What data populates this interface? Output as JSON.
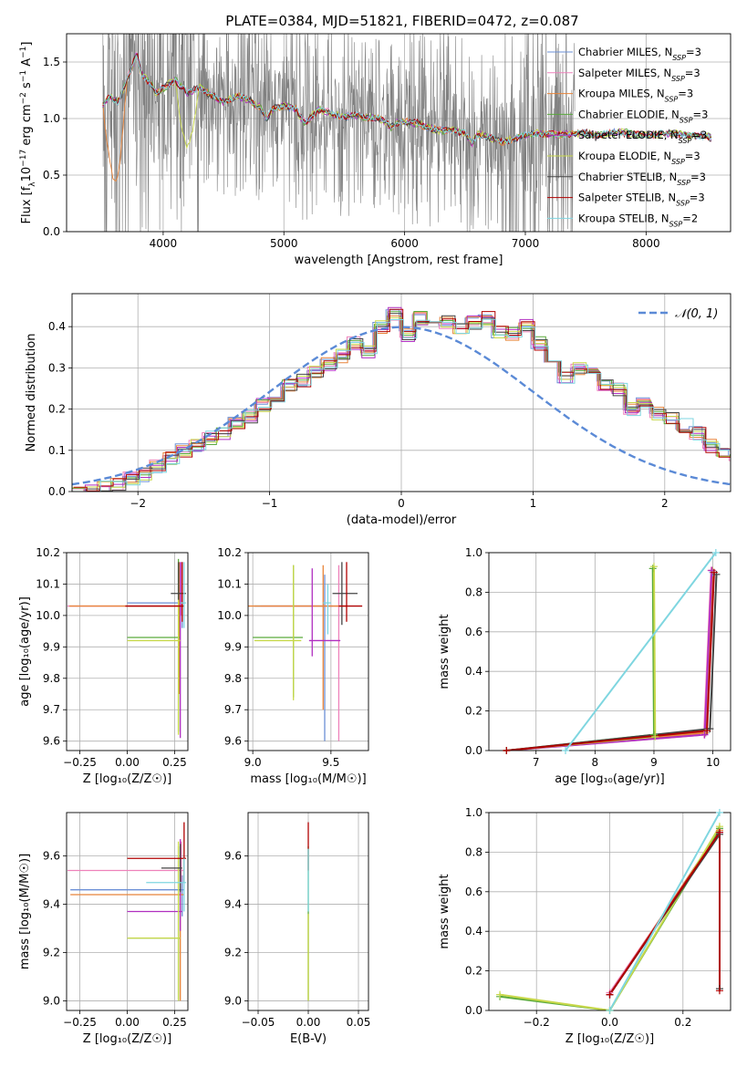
{
  "figure": {
    "title": "PLATE=0384, MJD=51821, FIBERID=0472, z=0.087"
  },
  "models": [
    {
      "name": "Chabrier MILES",
      "nssp": "3",
      "color": "#6b8fd6"
    },
    {
      "name": "Salpeter MILES",
      "nssp": "3",
      "color": "#ee82bb"
    },
    {
      "name": "Kroupa MILES",
      "nssp": "3",
      "color": "#e8843a"
    },
    {
      "name": "Chabrier ELODIE",
      "nssp": "3",
      "color": "#5aaa3c"
    },
    {
      "name": "Salpeter ELODIE",
      "nssp": "3",
      "color": "#b02fc0"
    },
    {
      "name": "Kroupa ELODIE",
      "nssp": "3",
      "color": "#c8d84a"
    },
    {
      "name": "Chabrier STELIB",
      "nssp": "3",
      "color": "#444444"
    },
    {
      "name": "Salpeter STELIB",
      "nssp": "3",
      "color": "#b00000"
    },
    {
      "name": "Kroupa STELIB",
      "nssp": "2",
      "color": "#7fd6e0"
    }
  ],
  "chart_data": [
    {
      "id": "spectrum",
      "type": "line",
      "xlabel": "wavelength [Angstrom, rest frame]",
      "ylabel_parts": [
        "Flux [f",
        "λ",
        "10",
        "−17",
        " erg cm",
        "−2",
        " s",
        "−1",
        " A",
        "−1",
        "]"
      ],
      "xlim": [
        3200,
        8700
      ],
      "ylim": [
        0,
        1.75
      ],
      "xticks": [
        4000,
        5000,
        6000,
        7000,
        8000
      ],
      "yticks": [
        0.0,
        0.5,
        1.0,
        1.5
      ],
      "ytick_labels": [
        "0.0",
        "0.5",
        "1.0",
        "1.5"
      ],
      "data_color": "#808080",
      "data_range": [
        3500,
        7410
      ],
      "model_range": [
        3500,
        8550
      ],
      "continuum": {
        "x": [
          3500,
          3560,
          3620,
          3680,
          3740,
          3780,
          3820,
          3860,
          3900,
          3950,
          4000,
          4100,
          4200,
          4300,
          4400,
          4500,
          4600,
          4700,
          4800,
          4860,
          4900,
          4950,
          5000,
          5100,
          5180,
          5250,
          5300,
          5400,
          5500,
          5600,
          5700,
          5800,
          5890,
          5950,
          6000,
          6100,
          6200,
          6300,
          6400,
          6500,
          6563,
          6600,
          6700,
          6800,
          6900,
          7000,
          7100,
          7200,
          7300,
          7400,
          7500,
          7600,
          7700,
          7800,
          7900,
          8000,
          8100,
          8200,
          8300,
          8400,
          8500,
          8550
        ],
        "y": [
          1.12,
          1.2,
          1.14,
          1.28,
          1.45,
          1.58,
          1.4,
          1.35,
          1.3,
          1.22,
          1.27,
          1.34,
          1.22,
          1.28,
          1.2,
          1.14,
          1.2,
          1.17,
          1.1,
          0.99,
          1.08,
          1.1,
          1.12,
          1.08,
          0.95,
          1.05,
          1.08,
          1.04,
          1.02,
          1.03,
          1.01,
          1.0,
          0.92,
          0.97,
          0.97,
          0.96,
          0.92,
          0.89,
          0.9,
          0.87,
          0.78,
          0.86,
          0.84,
          0.79,
          0.82,
          0.85,
          0.87,
          0.86,
          0.86,
          0.87,
          0.87,
          0.85,
          0.87,
          0.88,
          0.86,
          0.85,
          0.86,
          0.87,
          0.86,
          0.84,
          0.85,
          0.82
        ]
      }
    },
    {
      "id": "residuals",
      "type": "histogram",
      "xlabel": "(data-model)/error",
      "ylabel": "Normed distribution",
      "xlim": [
        -2.5,
        2.5
      ],
      "ylim": [
        0,
        0.48
      ],
      "xticks": [
        -2,
        -1,
        0,
        1,
        2
      ],
      "xtick_labels": [
        "−2",
        "−1",
        "0",
        "1",
        "2"
      ],
      "yticks": [
        0.0,
        0.1,
        0.2,
        0.3,
        0.4
      ],
      "ytick_labels": [
        "0.0",
        "0.1",
        "0.2",
        "0.3",
        "0.4"
      ],
      "bin_edges_start": -2.5,
      "bin_width": 0.1,
      "base_hist": [
        0.0,
        0.0,
        0.01,
        0.02,
        0.03,
        0.04,
        0.06,
        0.08,
        0.1,
        0.11,
        0.13,
        0.14,
        0.17,
        0.18,
        0.21,
        0.23,
        0.26,
        0.27,
        0.29,
        0.31,
        0.33,
        0.36,
        0.34,
        0.4,
        0.43,
        0.38,
        0.42,
        0.4,
        0.41,
        0.4,
        0.41,
        0.42,
        0.39,
        0.38,
        0.4,
        0.36,
        0.3,
        0.28,
        0.3,
        0.29,
        0.26,
        0.25,
        0.2,
        0.21,
        0.19,
        0.18,
        0.16,
        0.14,
        0.11,
        0.09,
        0.09,
        0.08,
        0.09,
        0.06,
        0.07,
        0.05,
        0.05,
        0.04,
        0.04,
        0.03,
        0.03,
        0.02
      ],
      "legend": "𝒩(0, 1)",
      "gauss_color": "#5b8ad6"
    },
    {
      "id": "age_vs_Z",
      "type": "errorbar",
      "xlabel": "Z [log₁₀(Z/Z☉)]",
      "ylabel": "age  [log₁₀(age/yr)]",
      "xlim": [
        -0.32,
        0.32
      ],
      "ylim": [
        9.57,
        10.2
      ],
      "xticks": [
        -0.25,
        0.0,
        0.25
      ],
      "xtick_labels": [
        "−0.25",
        "0.00",
        "0.25"
      ],
      "yticks": [
        9.6,
        9.7,
        9.8,
        9.9,
        10.0,
        10.1,
        10.2
      ],
      "ytick_labels": [
        "9.6",
        "9.7",
        "9.8",
        "9.9",
        "10.0",
        "10.1",
        "10.2"
      ],
      "points": [
        {
          "model": 0,
          "x": 0.29,
          "y": 10.04,
          "xerr": [
            0.29,
            0.01
          ],
          "yerr": [
            0.08,
            0.13
          ]
        },
        {
          "model": 1,
          "x": 0.285,
          "y": 10.03,
          "xerr": [
            0.6,
            0.01
          ],
          "yerr": [
            0.03,
            0.14
          ]
        },
        {
          "model": 2,
          "x": 0.275,
          "y": 10.03,
          "xerr": [
            0.58,
            0.02
          ],
          "yerr": [
            0.28,
            0.14
          ]
        },
        {
          "model": 3,
          "x": 0.27,
          "y": 9.93,
          "xerr": [
            0.27,
            0.01
          ],
          "yerr": [
            0.3,
            0.25
          ]
        },
        {
          "model": 4,
          "x": 0.28,
          "y": 10.03,
          "xerr": [
            0.01,
            0.01
          ],
          "yerr": [
            0.42,
            0.14
          ]
        },
        {
          "model": 5,
          "x": 0.27,
          "y": 9.92,
          "xerr": [
            0.27,
            0.01
          ],
          "yerr": [
            0.3,
            0.25
          ]
        },
        {
          "model": 6,
          "x": 0.27,
          "y": 10.07,
          "xerr": [
            0.04,
            0.04
          ],
          "yerr": [
            0.02,
            0.1
          ]
        },
        {
          "model": 7,
          "x": 0.29,
          "y": 10.03,
          "xerr": [
            0.3,
            0.01
          ],
          "yerr": [
            0.05,
            0.14
          ]
        },
        {
          "model": 8,
          "x": 0.3,
          "y": 10.04,
          "xerr": [
            0.02,
            0.01
          ],
          "yerr": [
            0.08,
            0.13
          ]
        }
      ]
    },
    {
      "id": "age_vs_mass",
      "type": "errorbar",
      "xlabel": "mass [log₁₀(M/M☉)]",
      "ylabel": "",
      "xlim": [
        8.97,
        9.74
      ],
      "ylim": [
        9.57,
        10.2
      ],
      "xticks": [
        9.0,
        9.5
      ],
      "xtick_labels": [
        "9.0",
        "9.5"
      ],
      "yticks": [
        9.6,
        9.7,
        9.8,
        9.9,
        10.0,
        10.1,
        10.2
      ],
      "ytick_labels": [
        "9.6",
        "9.7",
        "9.8",
        "9.9",
        "10.0",
        "10.1",
        "10.2"
      ],
      "points": [
        {
          "model": 0,
          "x": 9.46,
          "y": 10.03,
          "xerr": [
            0.45,
            0.05
          ],
          "yerr": [
            0.43,
            0.1
          ]
        },
        {
          "model": 1,
          "x": 9.55,
          "y": 10.03,
          "xerr": [
            0.5,
            0.02
          ],
          "yerr": [
            0.43,
            0.13
          ]
        },
        {
          "model": 2,
          "x": 9.45,
          "y": 10.03,
          "xerr": [
            0.5,
            0.15
          ],
          "yerr": [
            0.33,
            0.13
          ]
        },
        {
          "model": 3,
          "x": 9.26,
          "y": 9.93,
          "xerr": [
            0.26,
            0.06
          ],
          "yerr": [
            0.19,
            0.23
          ]
        },
        {
          "model": 4,
          "x": 9.38,
          "y": 9.92,
          "xerr": [
            0.02,
            0.18
          ],
          "yerr": [
            0.05,
            0.23
          ]
        },
        {
          "model": 5,
          "x": 9.26,
          "y": 9.92,
          "xerr": [
            0.25,
            0.05
          ],
          "yerr": [
            0.19,
            0.24
          ]
        },
        {
          "model": 6,
          "x": 9.57,
          "y": 10.07,
          "xerr": [
            0.06,
            0.1
          ],
          "yerr": [
            0.1,
            0.1
          ]
        },
        {
          "model": 7,
          "x": 9.6,
          "y": 10.03,
          "xerr": [
            0.05,
            0.1
          ],
          "yerr": [
            0.05,
            0.14
          ]
        },
        {
          "model": 8,
          "x": 9.48,
          "y": 10.04,
          "xerr": [
            0.03,
            0.02
          ],
          "yerr": [
            0.1,
            0.06
          ]
        }
      ]
    },
    {
      "id": "massweight_vs_age",
      "type": "line",
      "xlabel": "age  [log₁₀(age/yr)]",
      "ylabel": "mass weight",
      "xlim": [
        6.2,
        10.3
      ],
      "ylim": [
        0,
        1.0
      ],
      "xticks": [
        7,
        8,
        9,
        10
      ],
      "xtick_labels": [
        "7",
        "8",
        "9",
        "10"
      ],
      "yticks": [
        0.0,
        0.2,
        0.4,
        0.6,
        0.8,
        1.0
      ],
      "ytick_labels": [
        "0.0",
        "0.2",
        "0.4",
        "0.6",
        "0.8",
        "1.0"
      ],
      "series": [
        {
          "model": 0,
          "x": [
            6.5,
            9.88,
            10.0
          ],
          "y": [
            0.0,
            0.09,
            0.9
          ]
        },
        {
          "model": 1,
          "x": [
            6.5,
            9.85,
            9.97
          ],
          "y": [
            0.0,
            0.08,
            0.91
          ]
        },
        {
          "model": 2,
          "x": [
            6.5,
            9.87,
            9.99
          ],
          "y": [
            0.0,
            0.09,
            0.91
          ]
        },
        {
          "model": 3,
          "x": [
            6.5,
            9.0,
            8.98
          ],
          "y": [
            0.0,
            0.08,
            0.92
          ]
        },
        {
          "model": 4,
          "x": [
            6.5,
            9.86,
            9.98
          ],
          "y": [
            0.0,
            0.08,
            0.91
          ]
        },
        {
          "model": 5,
          "x": [
            6.5,
            9.02,
            9.0
          ],
          "y": [
            0.0,
            0.07,
            0.93
          ]
        },
        {
          "model": 6,
          "x": [
            6.5,
            9.95,
            10.06
          ],
          "y": [
            0.0,
            0.11,
            0.89
          ]
        },
        {
          "model": 7,
          "x": [
            6.5,
            9.9,
            10.02
          ],
          "y": [
            0.0,
            0.1,
            0.9
          ]
        },
        {
          "model": 8,
          "x": [
            7.5,
            10.05
          ],
          "y": [
            0.0,
            1.0
          ]
        }
      ]
    },
    {
      "id": "mass_vs_Z",
      "type": "errorbar",
      "xlabel": "Z [log₁₀(Z/Z☉)]",
      "ylabel": "mass [log₁₀(M/M☉)]",
      "xlim": [
        -0.32,
        0.32
      ],
      "ylim": [
        8.96,
        9.78
      ],
      "xticks": [
        -0.25,
        0.0,
        0.25
      ],
      "xtick_labels": [
        "−0.25",
        "0.00",
        "0.25"
      ],
      "yticks": [
        9.0,
        9.2,
        9.4,
        9.6
      ],
      "ytick_labels": [
        "9.0",
        "9.2",
        "9.4",
        "9.6"
      ],
      "points": [
        {
          "model": 0,
          "x": 0.29,
          "y": 9.46,
          "xerr": [
            0.59,
            0.01
          ],
          "yerr": [
            0.11,
            0.06
          ]
        },
        {
          "model": 1,
          "x": 0.285,
          "y": 9.54,
          "xerr": [
            0.6,
            0.01
          ],
          "yerr": [
            0.05,
            0.12
          ]
        },
        {
          "model": 2,
          "x": 0.28,
          "y": 9.44,
          "xerr": [
            0.58,
            0.02
          ],
          "yerr": [
            0.44,
            0.12
          ]
        },
        {
          "model": 3,
          "x": 0.27,
          "y": 9.26,
          "xerr": [
            0.27,
            0.01
          ],
          "yerr": [
            0.26,
            0.38
          ]
        },
        {
          "model": 4,
          "x": 0.28,
          "y": 9.37,
          "xerr": [
            0.28,
            0.01
          ],
          "yerr": [
            0.08,
            0.3
          ]
        },
        {
          "model": 5,
          "x": 0.27,
          "y": 9.26,
          "xerr": [
            0.27,
            0.01
          ],
          "yerr": [
            0.26,
            0.4
          ]
        },
        {
          "model": 6,
          "x": 0.28,
          "y": 9.55,
          "xerr": [
            0.1,
            0.01
          ],
          "yerr": [
            0.1,
            0.1
          ]
        },
        {
          "model": 7,
          "x": 0.3,
          "y": 9.59,
          "xerr": [
            0.3,
            0.01
          ],
          "yerr": [
            0.1,
            0.15
          ]
        },
        {
          "model": 8,
          "x": 0.3,
          "y": 9.49,
          "xerr": [
            0.2,
            0.01
          ],
          "yerr": [
            0.12,
            0.1
          ]
        }
      ]
    },
    {
      "id": "mass_vs_ebv",
      "type": "errorbar",
      "xlabel": "E(B-V)",
      "ylabel": "",
      "xlim": [
        -0.06,
        0.06
      ],
      "ylim": [
        8.96,
        9.78
      ],
      "xticks": [
        -0.05,
        0.0,
        0.05
      ],
      "xtick_labels": [
        "−0.05",
        "0.00",
        "0.05"
      ],
      "yticks": [
        9.0,
        9.2,
        9.4,
        9.6
      ],
      "ytick_labels": [
        "9.0",
        "9.2",
        "9.4",
        "9.6"
      ],
      "points": [
        {
          "model": 3,
          "x": 0.0,
          "y": 9.26,
          "xerr": [
            0,
            0
          ],
          "yerr": [
            0.26,
            0.38
          ]
        },
        {
          "model": 7,
          "x": 0.0,
          "y": 9.59,
          "xerr": [
            0,
            0
          ],
          "yerr": [
            0.05,
            0.15
          ]
        },
        {
          "model": 8,
          "x": 0.0,
          "y": 9.49,
          "xerr": [
            0,
            0
          ],
          "yerr": [
            0.12,
            0.14
          ]
        },
        {
          "model": 5,
          "x": 0.0,
          "y": 9.26,
          "xerr": [
            0,
            0
          ],
          "yerr": [
            0.26,
            0.1
          ]
        }
      ]
    },
    {
      "id": "massweight_vs_Z",
      "type": "line",
      "xlabel": "Z [log₁₀(Z/Z☉)]",
      "ylabel": "mass weight",
      "xlim": [
        -0.33,
        0.33
      ],
      "ylim": [
        0,
        1.0
      ],
      "xticks": [
        -0.2,
        0.0,
        0.2
      ],
      "xtick_labels": [
        "−0.2",
        "0.0",
        "0.2"
      ],
      "yticks": [
        0.0,
        0.2,
        0.4,
        0.6,
        0.8,
        1.0
      ],
      "ytick_labels": [
        "0.0",
        "0.2",
        "0.4",
        "0.6",
        "0.8",
        "1.0"
      ],
      "series": [
        {
          "model": 0,
          "x": [
            0.0,
            0.3
          ],
          "y": [
            0.08,
            0.91
          ]
        },
        {
          "model": 1,
          "x": [
            0.0,
            0.3
          ],
          "y": [
            0.09,
            0.9
          ]
        },
        {
          "model": 2,
          "x": [
            0.0,
            0.3
          ],
          "y": [
            0.08,
            0.91
          ]
        },
        {
          "model": 3,
          "x": [
            -0.3,
            0.0,
            0.3
          ],
          "y": [
            0.07,
            0.0,
            0.92
          ]
        },
        {
          "model": 4,
          "x": [
            0.0,
            0.3
          ],
          "y": [
            0.08,
            0.9
          ]
        },
        {
          "model": 5,
          "x": [
            -0.3,
            0.0,
            0.3
          ],
          "y": [
            0.08,
            0.0,
            0.93
          ]
        },
        {
          "model": 6,
          "x": [
            0.0,
            0.3,
            0.3
          ],
          "y": [
            0.08,
            0.89,
            0.11
          ]
        },
        {
          "model": 7,
          "x": [
            0.0,
            0.3,
            0.3
          ],
          "y": [
            0.08,
            0.9,
            0.1
          ]
        },
        {
          "model": 8,
          "x": [
            0.0,
            0.3
          ],
          "y": [
            0.0,
            1.0
          ]
        }
      ]
    }
  ]
}
